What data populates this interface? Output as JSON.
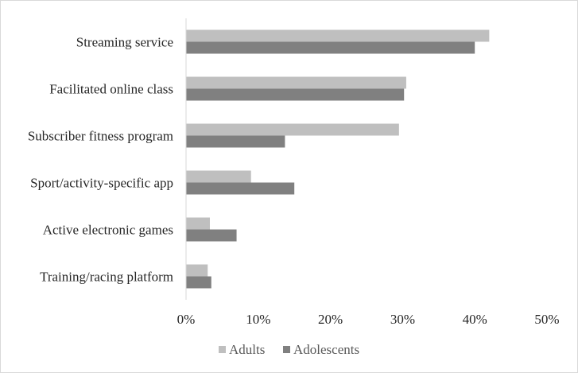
{
  "chart_data": {
    "type": "bar",
    "orientation": "horizontal",
    "categories": [
      "Streaming service",
      "Facilitated online class",
      "Subscriber fitness program",
      "Sport/activity-specific app",
      "Active electronic games",
      "Training/racing platform"
    ],
    "series": [
      {
        "name": "Adults",
        "values": [
          42,
          30.5,
          29.5,
          9,
          3.3,
          3
        ],
        "color": "#bfbfbf"
      },
      {
        "name": "Adolescents",
        "values": [
          40,
          30.2,
          13.7,
          15,
          7,
          3.5
        ],
        "color": "#808080"
      }
    ],
    "xlim": [
      0,
      50
    ],
    "x_ticks": [
      0,
      10,
      20,
      30,
      40,
      50
    ],
    "x_tick_labels": [
      "0%",
      "10%",
      "20%",
      "30%",
      "40%",
      "50%"
    ],
    "grid": false,
    "legend_position": "bottom",
    "title": "",
    "xlabel": "",
    "ylabel": ""
  }
}
